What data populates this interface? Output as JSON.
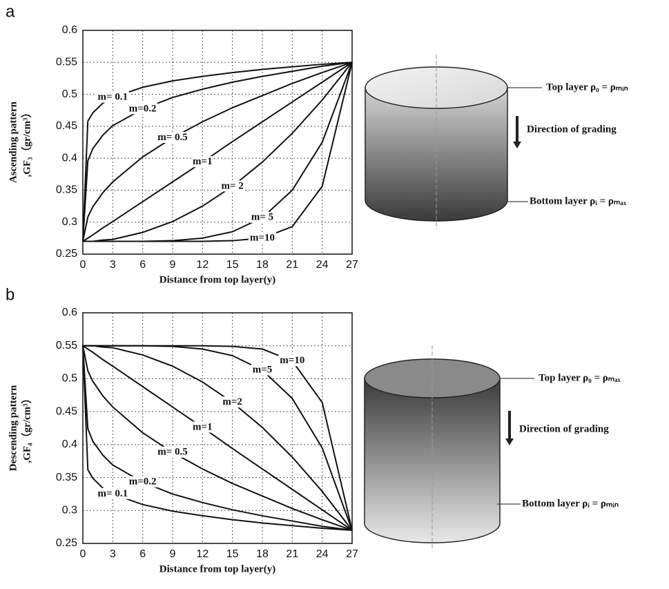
{
  "chart_data": [
    {
      "type": "line",
      "panel": "a",
      "xlabel": "Distance from top layer(y)",
      "ylabel": [
        "Ascending pattern",
        ",GF₃（gr/cm³）"
      ],
      "xlim": [
        0,
        27
      ],
      "ylim": [
        0.25,
        0.6
      ],
      "xticks": [
        0,
        3,
        6,
        9,
        12,
        15,
        18,
        21,
        24,
        27
      ],
      "yticks": [
        0.25,
        0.3,
        0.35,
        0.4,
        0.45,
        0.5,
        0.55,
        0.6
      ],
      "grid": true,
      "color": "#111",
      "x": [
        0,
        0.5,
        1,
        2,
        3,
        6,
        9,
        12,
        15,
        18,
        21,
        24,
        27
      ],
      "series": [
        {
          "name": "m= 0.1",
          "values": [
            0.27,
            0.458,
            0.471,
            0.486,
            0.495,
            0.511,
            0.521,
            0.528,
            0.534,
            0.539,
            0.543,
            0.547,
            0.55
          ]
        },
        {
          "name": "m=0.2",
          "values": [
            0.27,
            0.396,
            0.415,
            0.436,
            0.451,
            0.477,
            0.495,
            0.508,
            0.519,
            0.528,
            0.536,
            0.544,
            0.55
          ]
        },
        {
          "name": "m= 0.5",
          "values": [
            0.27,
            0.308,
            0.324,
            0.346,
            0.363,
            0.402,
            0.432,
            0.457,
            0.479,
            0.498,
            0.517,
            0.534,
            0.55
          ]
        },
        {
          "name": "m=1",
          "values": [
            0.27,
            0.275,
            0.28,
            0.291,
            0.301,
            0.332,
            0.363,
            0.394,
            0.426,
            0.457,
            0.488,
            0.519,
            0.55
          ]
        },
        {
          "name": "m= 2",
          "values": [
            0.27,
            0.27,
            0.27,
            0.272,
            0.273,
            0.284,
            0.301,
            0.325,
            0.356,
            0.394,
            0.439,
            0.491,
            0.55
          ]
        },
        {
          "name": "m= 5",
          "values": [
            0.27,
            0.27,
            0.27,
            0.27,
            0.27,
            0.27,
            0.271,
            0.275,
            0.285,
            0.307,
            0.35,
            0.425,
            0.55
          ]
        },
        {
          "name": "m=10",
          "values": [
            0.27,
            0.27,
            0.27,
            0.27,
            0.27,
            0.27,
            0.27,
            0.27,
            0.271,
            0.275,
            0.293,
            0.356,
            0.55
          ]
        }
      ],
      "diagram": {
        "top": "Top layer  ρ₀ = ρₘᵢₙ",
        "direction": "Direction of grading",
        "bottom": "Bottom layer ρᵢ = ρₘₐₓ"
      }
    },
    {
      "type": "line",
      "panel": "b",
      "xlabel": "Distance from top layer(y)",
      "ylabel": [
        "Descending pattern",
        ",GF₄（gr/cm³）"
      ],
      "xlim": [
        0,
        27
      ],
      "ylim": [
        0.25,
        0.6
      ],
      "xticks": [
        0,
        3,
        6,
        9,
        12,
        15,
        18,
        21,
        24,
        27
      ],
      "yticks": [
        0.25,
        0.3,
        0.35,
        0.4,
        0.45,
        0.5,
        0.55,
        0.6
      ],
      "grid": true,
      "color": "#111",
      "x": [
        0,
        0.5,
        1,
        2,
        3,
        6,
        9,
        12,
        15,
        18,
        21,
        24,
        27
      ],
      "series": [
        {
          "name": "m= 0.1",
          "values": [
            0.55,
            0.362,
            0.349,
            0.334,
            0.325,
            0.309,
            0.299,
            0.292,
            0.286,
            0.281,
            0.277,
            0.273,
            0.27
          ]
        },
        {
          "name": "m=0.2",
          "values": [
            0.55,
            0.424,
            0.405,
            0.384,
            0.369,
            0.343,
            0.325,
            0.312,
            0.301,
            0.292,
            0.284,
            0.276,
            0.27
          ]
        },
        {
          "name": "m= 0.5",
          "values": [
            0.55,
            0.512,
            0.496,
            0.474,
            0.457,
            0.418,
            0.388,
            0.363,
            0.341,
            0.322,
            0.303,
            0.286,
            0.27
          ]
        },
        {
          "name": "m=1",
          "values": [
            0.55,
            0.545,
            0.54,
            0.529,
            0.519,
            0.488,
            0.457,
            0.426,
            0.394,
            0.363,
            0.332,
            0.301,
            0.27
          ]
        },
        {
          "name": "m=2",
          "values": [
            0.55,
            0.55,
            0.55,
            0.548,
            0.547,
            0.536,
            0.519,
            0.495,
            0.464,
            0.426,
            0.381,
            0.329,
            0.27
          ]
        },
        {
          "name": "m=5",
          "values": [
            0.55,
            0.55,
            0.55,
            0.55,
            0.55,
            0.55,
            0.549,
            0.545,
            0.535,
            0.513,
            0.47,
            0.395,
            0.27
          ]
        },
        {
          "name": "m=10",
          "values": [
            0.55,
            0.55,
            0.55,
            0.55,
            0.55,
            0.55,
            0.55,
            0.55,
            0.549,
            0.545,
            0.527,
            0.464,
            0.27
          ]
        }
      ],
      "diagram": {
        "top": "Top layer  ρ₀ = ρₘₐₓ",
        "direction": "Direction of grading",
        "bottom": "Bottom layer ρᵢ = ρₘᵢₙ"
      }
    }
  ]
}
